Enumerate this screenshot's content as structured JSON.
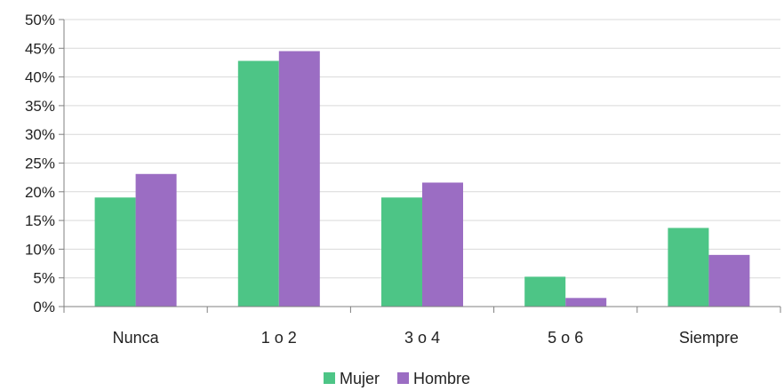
{
  "chart_data": {
    "type": "bar",
    "title": "",
    "xlabel": "",
    "ylabel": "",
    "categories": [
      "Nunca",
      "1 o 2",
      "3 o 4",
      "5 o 6",
      "Siempre"
    ],
    "series": [
      {
        "name": "Mujer",
        "color": "#4dc586",
        "values": [
          19.0,
          42.8,
          19.0,
          5.2,
          13.7
        ]
      },
      {
        "name": "Hombre",
        "color": "#9b6dc3",
        "values": [
          23.1,
          44.5,
          21.6,
          1.5,
          9.0
        ]
      }
    ],
    "ylim": [
      0,
      50
    ],
    "yticks": [
      0,
      5,
      10,
      15,
      20,
      25,
      30,
      35,
      40,
      45,
      50
    ],
    "ytick_labels": [
      "0%",
      "5%",
      "10%",
      "15%",
      "20%",
      "25%",
      "30%",
      "35%",
      "40%",
      "45%",
      "50%"
    ],
    "grid": true,
    "legend_position": "bottom"
  }
}
